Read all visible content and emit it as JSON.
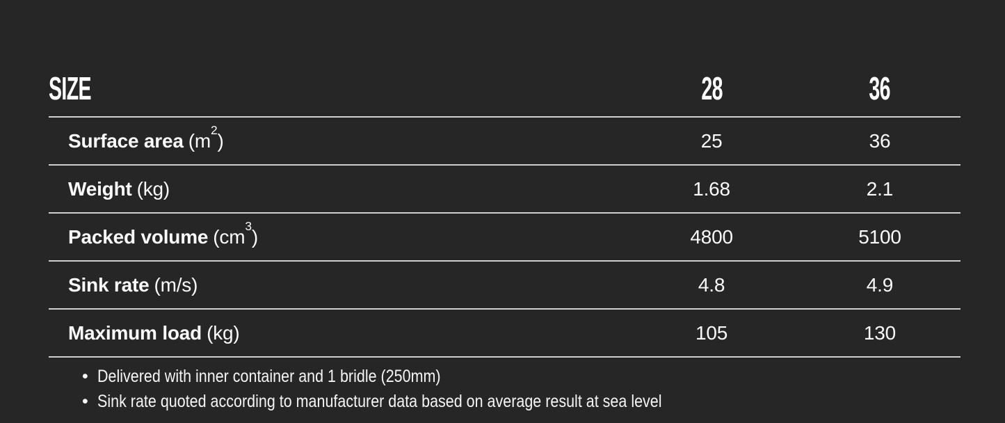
{
  "page": {
    "background_color": "#262626",
    "text_color": "#ffffff",
    "divider_color": "#cfcfcf"
  },
  "table": {
    "size_header": "SIZE",
    "columns": [
      "28",
      "36"
    ],
    "rows": [
      {
        "label": "Surface area",
        "unit_open": "(m",
        "unit_sup": "2",
        "unit_close": ")",
        "values": [
          "25",
          "36"
        ]
      },
      {
        "label": "Weight",
        "unit_open": "(kg)",
        "unit_sup": "",
        "unit_close": "",
        "values": [
          "1.68",
          "2.1"
        ]
      },
      {
        "label": "Packed volume",
        "unit_open": "(cm",
        "unit_sup": "3",
        "unit_close": ")",
        "values": [
          "4800",
          "5100"
        ]
      },
      {
        "label": "Sink rate",
        "unit_open": "(m/s)",
        "unit_sup": "",
        "unit_close": "",
        "values": [
          "4.8",
          "4.9"
        ]
      },
      {
        "label": "Maximum load",
        "unit_open": "(kg)",
        "unit_sup": "",
        "unit_close": "",
        "values": [
          "105",
          "130"
        ]
      }
    ]
  },
  "notes": [
    "Delivered with inner container and 1 bridle (250mm)",
    "Sink rate quoted according to manufacturer data based on average result at sea level"
  ]
}
